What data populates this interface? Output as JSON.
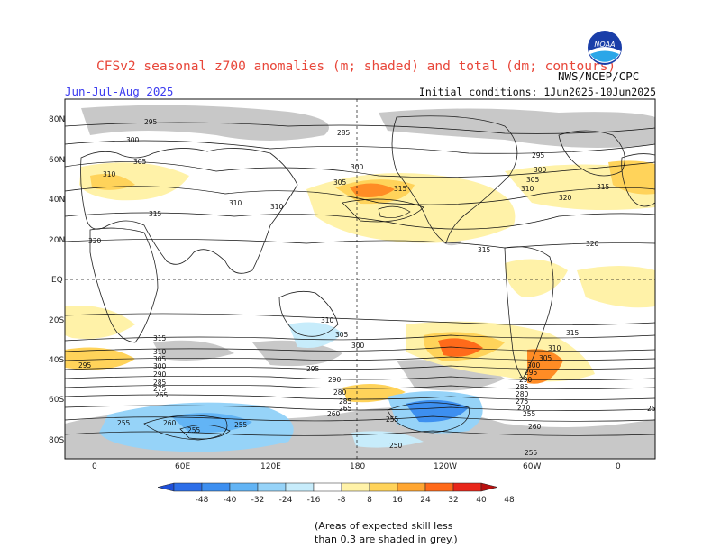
{
  "title": "CFSv2 seasonal z700 anomalies (m; shaded) and total (dm; contours)",
  "season": "Jun-Jul-Aug 2025",
  "initial_conditions": "Initial conditions: 1Jun2025-10Jun2025",
  "agency": "NWS/NCEP/CPC",
  "logo_text": "NOAA",
  "map": {
    "lat_labels": [
      "80N",
      "60N",
      "40N",
      "20N",
      "EQ",
      "20S",
      "40S",
      "60S",
      "80S"
    ],
    "lon_labels": [
      "0",
      "60E",
      "120E",
      "180",
      "120W",
      "60W",
      "0"
    ],
    "contour_labels": [
      "295",
      "300",
      "305",
      "310",
      "315",
      "320",
      "285",
      "310",
      "300",
      "305",
      "315",
      "320",
      "315",
      "310",
      "305",
      "300",
      "295",
      "290",
      "285",
      "280",
      "275",
      "270",
      "265",
      "260",
      "255",
      "250",
      "310",
      "315",
      "320",
      "300",
      "295",
      "290",
      "310",
      "305",
      "300",
      "295",
      "290",
      "285",
      "280",
      "275",
      "270",
      "265",
      "260",
      "255",
      "250",
      "315",
      "310",
      "305",
      "300",
      "295",
      "290",
      "285",
      "280",
      "275",
      "270",
      "265",
      "260",
      "255",
      "250",
      "285",
      "255",
      "260",
      "255",
      "250",
      "255",
      "255",
      "255",
      "260",
      "255",
      "255",
      "250",
      "260",
      "255",
      "250"
    ],
    "skill_note_line1": "(Areas of expected skill less",
    "skill_note_line2": "than 0.3 are shaded in grey.)"
  },
  "colorbar": {
    "ticks": [
      "-48",
      "-40",
      "-32",
      "-24",
      "-16",
      "-8",
      "8",
      "16",
      "24",
      "32",
      "40",
      "48"
    ],
    "colors": [
      "#1f4fd8",
      "#2d6ee8",
      "#3d8ff0",
      "#62b4f5",
      "#96d3f8",
      "#c7ecfb",
      "#ffffff",
      "#fff2a8",
      "#ffd35a",
      "#ffa631",
      "#ff6a1a",
      "#e8261a",
      "#b8100f"
    ]
  },
  "colors": {
    "title": "#e8473a",
    "season": "#3c3cf0",
    "skill_grey": "#c8c8c8"
  }
}
